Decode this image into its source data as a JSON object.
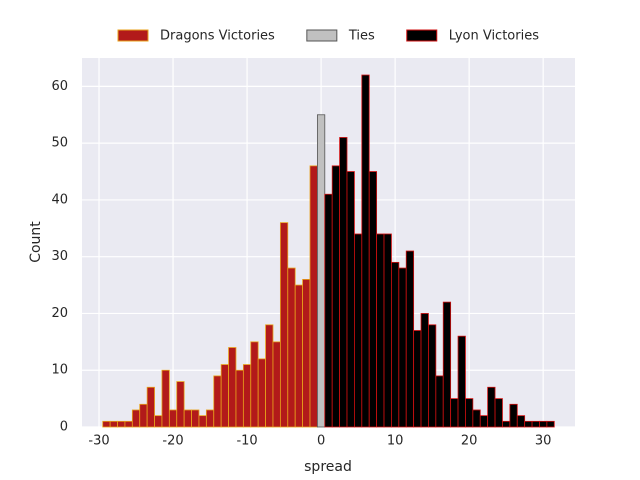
{
  "chart_data": {
    "type": "histogram",
    "xlabel": "spread",
    "ylabel": "Count",
    "xlim": [
      -32.3,
      34.3
    ],
    "ylim": [
      0,
      65
    ],
    "xticks": [
      -30,
      -20,
      -10,
      0,
      10,
      20,
      30
    ],
    "yticks": [
      0,
      10,
      20,
      30,
      40,
      50,
      60
    ],
    "grid": true,
    "background": "#eaeaf2",
    "legend": "upper center",
    "series": [
      {
        "name": "Dragons Victories",
        "color": "#b21a1a",
        "edgecolor": "#e8a21a",
        "bins": [
          -29.5,
          -28.5,
          -27.5,
          -26.5,
          -25.5,
          -24.5,
          -23.5,
          -22.5,
          -21.5,
          -20.5,
          -19.5,
          -18.5,
          -17.5,
          -16.5,
          -15.5,
          -14.5,
          -13.5,
          -12.5,
          -11.5,
          -10.5,
          -9.5,
          -8.5,
          -7.5,
          -6.5,
          -5.5,
          -4.5,
          -3.5,
          -2.5,
          -1.5,
          -0.5
        ],
        "counts": [
          1,
          1,
          1,
          1,
          3,
          4,
          7,
          2,
          10,
          3,
          8,
          3,
          3,
          2,
          3,
          9,
          11,
          14,
          10,
          11,
          15,
          12,
          18,
          15,
          36,
          28,
          25,
          26,
          46
        ]
      },
      {
        "name": "Ties",
        "color": "#c0c0c0",
        "edgecolor": "#555555",
        "bins": [
          -0.5,
          0.5
        ],
        "counts": [
          55
        ]
      },
      {
        "name": "Lyon Victories",
        "color": "#000000",
        "edgecolor": "#d01010",
        "bins": [
          0.5,
          1.5,
          2.5,
          3.5,
          4.5,
          5.5,
          6.5,
          7.5,
          8.5,
          9.5,
          10.5,
          11.5,
          12.5,
          13.5,
          14.5,
          15.5,
          16.5,
          17.5,
          18.5,
          19.5,
          20.5,
          21.5,
          22.5,
          23.5,
          24.5,
          25.5,
          26.5,
          27.5,
          28.5,
          29.5,
          30.5,
          31.5
        ],
        "counts": [
          41,
          46,
          51,
          45,
          34,
          62,
          45,
          34,
          34,
          29,
          28,
          31,
          17,
          20,
          18,
          9,
          22,
          5,
          16,
          5,
          3,
          2,
          7,
          5,
          1,
          4,
          2,
          1,
          1,
          1,
          1
        ]
      }
    ]
  }
}
